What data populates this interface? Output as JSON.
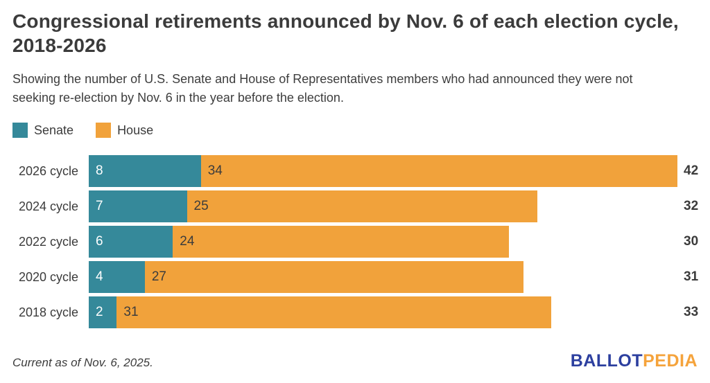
{
  "header": {
    "title": "Congressional retirements announced by Nov. 6 of each election cycle, 2018-2026",
    "subtitle": "Showing the number of U.S. Senate and House of Representatives members who had announced they were not seeking re-election by Nov. 6 in the year before the election."
  },
  "chart_data": {
    "type": "bar",
    "orientation": "horizontal",
    "stacked": true,
    "categories": [
      "2026 cycle",
      "2024 cycle",
      "2022 cycle",
      "2020 cycle",
      "2018 cycle"
    ],
    "series": [
      {
        "name": "Senate",
        "color": "#35899a",
        "label_color": "#ffffff",
        "values": [
          8,
          7,
          6,
          4,
          2
        ]
      },
      {
        "name": "House",
        "color": "#f1a23b",
        "label_color": "#3c3c3c",
        "values": [
          34,
          25,
          24,
          27,
          31
        ]
      }
    ],
    "totals": [
      42,
      32,
      30,
      31,
      33
    ],
    "xlim": [
      0,
      42
    ],
    "grid": "off",
    "legend_position": "top-left",
    "value_labels": "inside start of each segment",
    "total_labels": "bold, right of bar end"
  },
  "footer": {
    "note": "Current as of Nov. 6, 2025.",
    "logo": {
      "part1": "BALLOT",
      "part2": "PEDIA",
      "color1": "#2c3f9f",
      "color2": "#f5a33b"
    }
  }
}
